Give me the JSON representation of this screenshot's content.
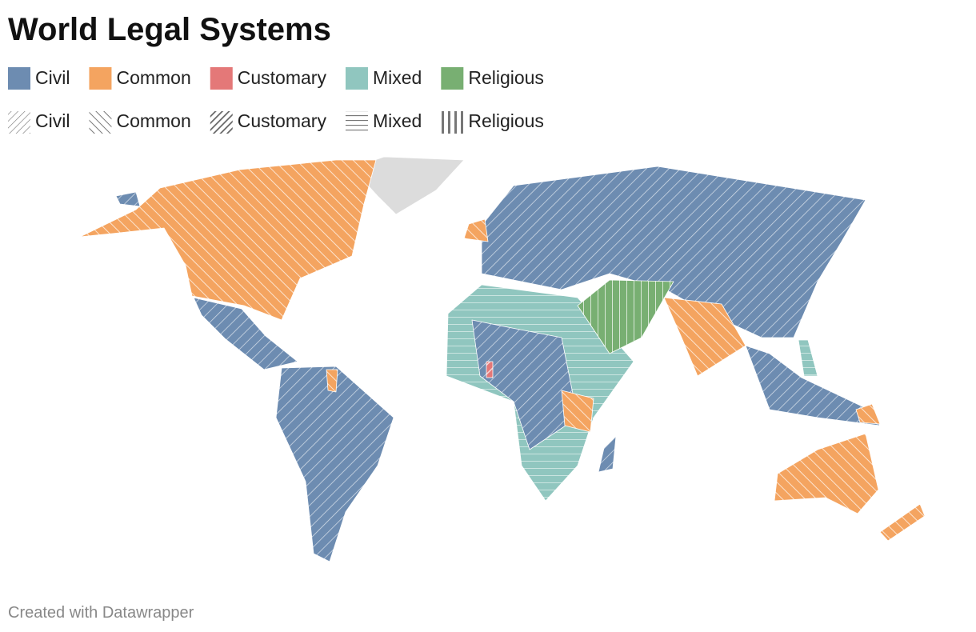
{
  "title": "World Legal Systems",
  "legend": {
    "colors": [
      {
        "label": "Civil",
        "color": "#6d8cb1"
      },
      {
        "label": "Common",
        "color": "#f4a460"
      },
      {
        "label": "Customary",
        "color": "#e47878"
      },
      {
        "label": "Mixed",
        "color": "#90c6bf"
      },
      {
        "label": "Religious",
        "color": "#78af72"
      }
    ],
    "patterns": [
      {
        "label": "Civil"
      },
      {
        "label": "Common"
      },
      {
        "label": "Customary"
      },
      {
        "label": "Mixed"
      },
      {
        "label": "Religious"
      }
    ]
  },
  "footer": "Created with Datawrapper"
}
